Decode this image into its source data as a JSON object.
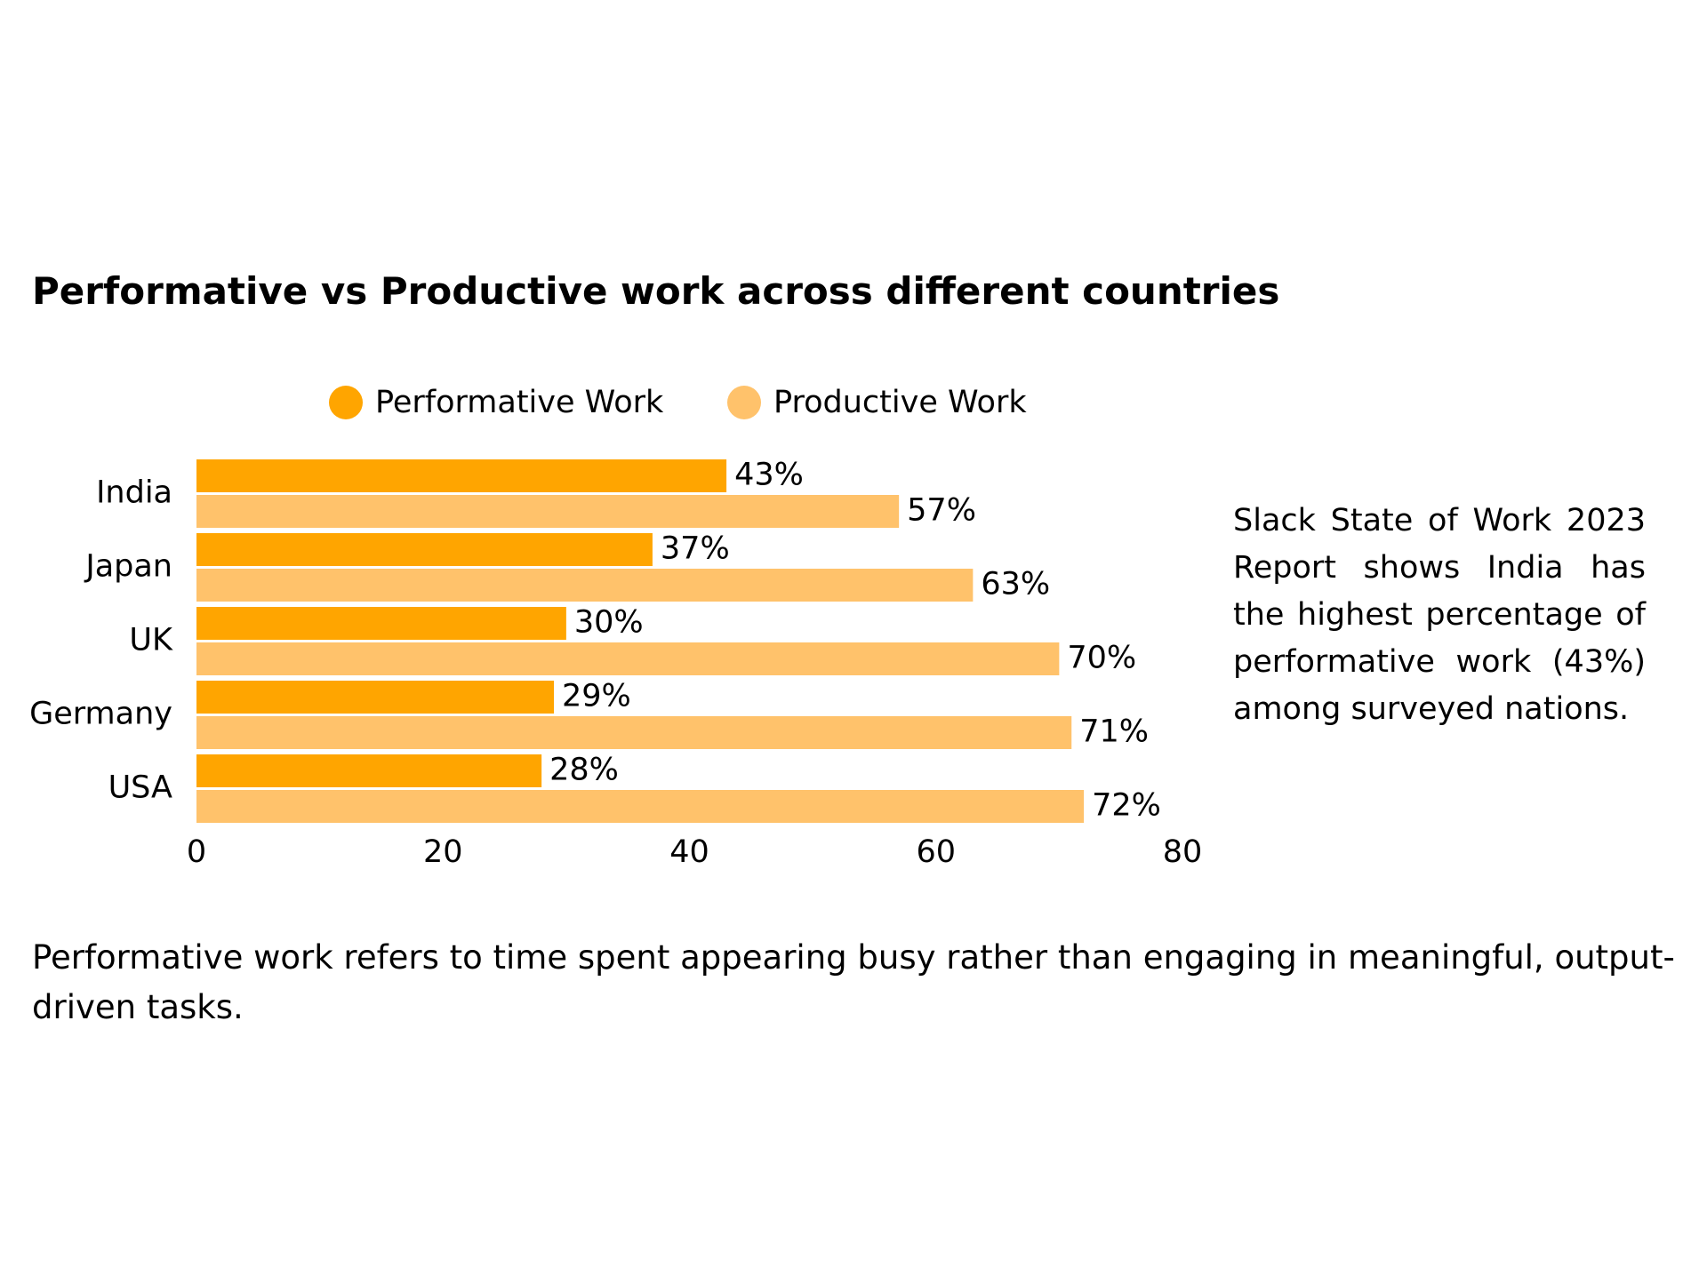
{
  "title": "Performative vs Productive work across different countries",
  "colors": {
    "performative": "#FFA500",
    "productive": "#FFC26B"
  },
  "chart_data": {
    "type": "bar",
    "orientation": "horizontal",
    "title": "Performative vs Productive work across different countries",
    "categories": [
      "India",
      "Japan",
      "UK",
      "Germany",
      "USA"
    ],
    "series": [
      {
        "name": "Performative Work",
        "values": [
          43,
          37,
          30,
          29,
          28
        ],
        "labels": [
          "43%",
          "37%",
          "30%",
          "29%",
          "28%"
        ],
        "color": "#FFA500"
      },
      {
        "name": "Productive Work",
        "values": [
          57,
          63,
          70,
          71,
          72
        ],
        "labels": [
          "57%",
          "63%",
          "70%",
          "71%",
          "72%"
        ],
        "color": "#FFC26B"
      }
    ],
    "xlim": [
      0,
      80
    ],
    "xticks": [
      "0",
      "20",
      "40",
      "60",
      "80"
    ],
    "xlabel": "",
    "ylabel": "",
    "grid": false,
    "legend_position": "top"
  },
  "side_note": "Slack State of Work 2023 Report shows India has the highest percentage of performative work (43%) among surveyed nations.",
  "footnote": "Performative work refers to time spent appearing busy rather than engaging in meaningful, output-driven tasks."
}
